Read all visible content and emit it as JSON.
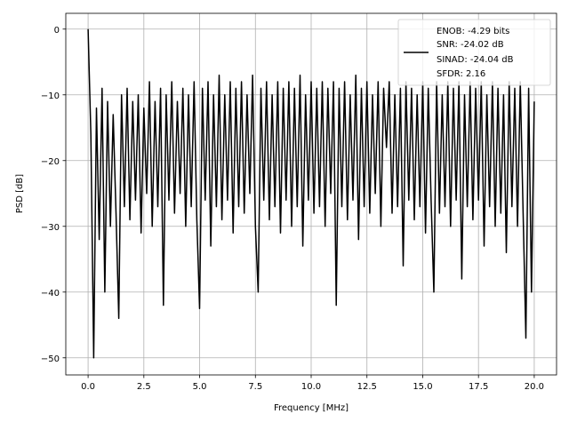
{
  "chart_data": {
    "type": "line",
    "title": "",
    "xlabel": "Frequency [MHz]",
    "ylabel": "PSD [dB]",
    "xlim": [
      -1.0,
      21.0
    ],
    "ylim": [
      -52.6,
      2.4
    ],
    "grid": true,
    "xticks": [
      0.0,
      2.5,
      5.0,
      7.5,
      10.0,
      12.5,
      15.0,
      17.5,
      20.0
    ],
    "xtick_labels": [
      "0.0",
      "2.5",
      "5.0",
      "7.5",
      "10.0",
      "12.5",
      "15.0",
      "17.5",
      "20.0"
    ],
    "yticks": [
      0,
      -10,
      -20,
      -30,
      -40,
      -50
    ],
    "ytick_labels": [
      "0",
      "−10",
      "−20",
      "−30",
      "−40",
      "−50"
    ],
    "legend": {
      "placement": "top-right",
      "entries": [
        "ENOB: -4.29 bits",
        "SNR: -24.02 dB",
        "SINAD: -24.04 dB",
        "SFDR: 2.16"
      ]
    },
    "series": [
      {
        "name": "PSD",
        "color": "#000000",
        "x_start": 0.0,
        "x_step": 0.125,
        "values": [
          0,
          -16,
          -50,
          -12,
          -32,
          -9,
          -40,
          -11,
          -30,
          -13,
          -28,
          -44,
          -10,
          -27,
          -9,
          -29,
          -11,
          -26,
          -10,
          -31,
          -12,
          -25,
          -8,
          -30,
          -11,
          -27,
          -9,
          -42,
          -10,
          -26,
          -8,
          -28,
          -11,
          -25,
          -9,
          -30,
          -10,
          -27,
          -8,
          -29,
          -42.5,
          -9,
          -26,
          -8,
          -33,
          -10,
          -27,
          -7,
          -29,
          -10,
          -26,
          -8,
          -31,
          -9,
          -27,
          -8,
          -28,
          -10,
          -25,
          -7,
          -30,
          -40,
          -9,
          -26,
          -8,
          -29,
          -10,
          -27,
          -8,
          -31,
          -9,
          -26,
          -8,
          -30,
          -9,
          -27,
          -7,
          -33,
          -10,
          -26,
          -8,
          -28,
          -9,
          -27,
          -8,
          -30,
          -9,
          -25,
          -8,
          -42,
          -9,
          -27,
          -8,
          -29,
          -10,
          -26,
          -7,
          -32,
          -9,
          -27,
          -8,
          -28,
          -10,
          -25,
          -8,
          -30,
          -9,
          -18,
          -8,
          -28,
          -10,
          -27,
          -9,
          -36,
          -8,
          -26,
          -9,
          -29,
          -10,
          -27,
          -8,
          -31,
          -9,
          -26,
          -40,
          -8,
          -28,
          -10,
          -27,
          -8,
          -30,
          -9,
          -26,
          -8,
          -38,
          -10,
          -27,
          -8,
          -29,
          -9,
          -26,
          -8,
          -33,
          -10,
          -27,
          -8,
          -30,
          -9,
          -28,
          -10,
          -34,
          -8,
          -27,
          -9,
          -30,
          -8,
          -28,
          -47,
          -9,
          -40,
          -11
        ]
      }
    ]
  }
}
